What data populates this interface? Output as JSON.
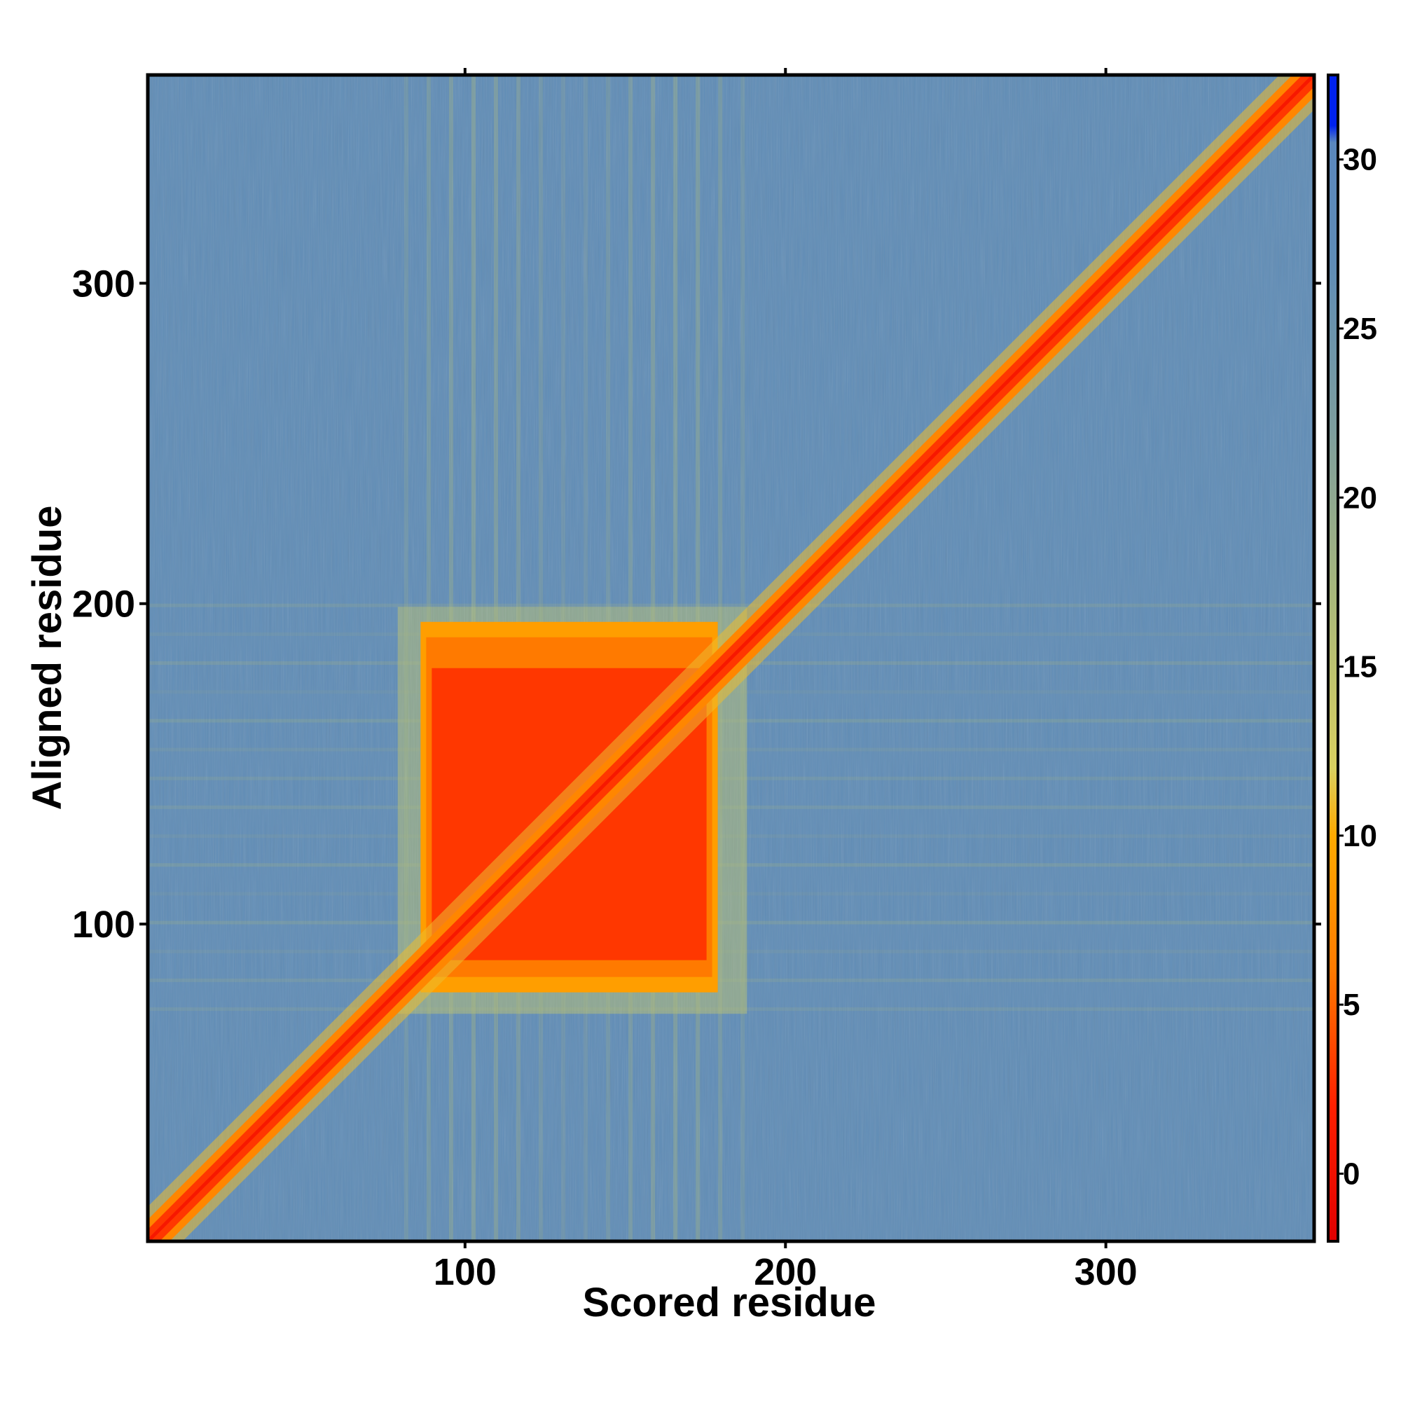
{
  "chart_data": {
    "type": "heatmap",
    "title": "",
    "xlabel": "Scored residue",
    "ylabel": "Aligned residue",
    "xlim": [
      1,
      365
    ],
    "ylim": [
      1,
      365
    ],
    "x_ticks": [
      100,
      200,
      300
    ],
    "y_ticks": [
      100,
      200,
      300
    ],
    "colorbar": {
      "range": [
        -2,
        32.5
      ],
      "ticks": [
        0,
        5,
        10,
        15,
        20,
        25,
        30
      ],
      "stops": [
        {
          "value": -2,
          "color": "#e00000"
        },
        {
          "value": 2,
          "color": "#ff2000"
        },
        {
          "value": 6,
          "color": "#ff7a00"
        },
        {
          "value": 10,
          "color": "#ffaa00"
        },
        {
          "value": 12,
          "color": "#d9d060"
        },
        {
          "value": 17,
          "color": "#a9b87a"
        },
        {
          "value": 22,
          "color": "#7d9e9e"
        },
        {
          "value": 27,
          "color": "#5f8cb6"
        },
        {
          "value": 30.5,
          "color": "#5a87bd"
        },
        {
          "value": 31,
          "color": "#0022ee"
        },
        {
          "value": 32.5,
          "color": "#0022ee"
        }
      ]
    },
    "regions": [
      {
        "kind": "diagonal",
        "from": 1,
        "to": 365,
        "value": 1
      },
      {
        "kind": "block",
        "x": [
          87,
          178
        ],
        "y": [
          80,
          193
        ],
        "value": 3
      },
      {
        "kind": "background",
        "value": 27
      }
    ],
    "grid": false,
    "legend": "colorbar-right"
  }
}
